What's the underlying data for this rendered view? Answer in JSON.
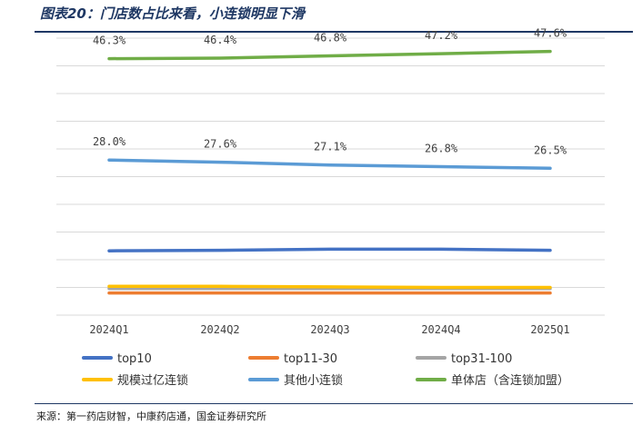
{
  "title": "图表20：门店数占比来看，小连锁明显下滑",
  "source": "来源：第一药店财智，中康药店通，国金证券研究所",
  "chart_data": {
    "type": "line",
    "categories": [
      "2024Q1",
      "2024Q2",
      "2024Q3",
      "2024Q4",
      "2025Q1"
    ],
    "ylim": [
      0,
      50
    ],
    "grid": true,
    "legend_position": "bottom",
    "series": [
      {
        "name": "top10",
        "color": "#4472c4",
        "values": [
          11.6,
          11.7,
          11.9,
          11.9,
          11.7
        ],
        "labels": []
      },
      {
        "name": "top11-30",
        "color": "#ed7d31",
        "values": [
          4.0,
          4.0,
          4.0,
          4.0,
          4.0
        ],
        "labels": []
      },
      {
        "name": "top31-100",
        "color": "#a5a5a5",
        "values": [
          4.8,
          4.8,
          4.8,
          4.8,
          4.8
        ],
        "labels": []
      },
      {
        "name": "规模过亿连锁",
        "color": "#ffc000",
        "values": [
          5.2,
          5.2,
          5.1,
          5.0,
          5.0
        ],
        "labels": []
      },
      {
        "name": "其他小连锁",
        "color": "#5b9bd5",
        "values": [
          28.0,
          27.6,
          27.1,
          26.8,
          26.5
        ],
        "labels": [
          "28.0%",
          "27.6%",
          "27.1%",
          "26.8%",
          "26.5%"
        ]
      },
      {
        "name": "单体店（含连锁加盟）",
        "color": "#70ad47",
        "values": [
          46.3,
          46.4,
          46.8,
          47.2,
          47.6
        ],
        "labels": [
          "46.3%",
          "46.4%",
          "46.8%",
          "47.2%",
          "47.6%"
        ]
      }
    ]
  }
}
